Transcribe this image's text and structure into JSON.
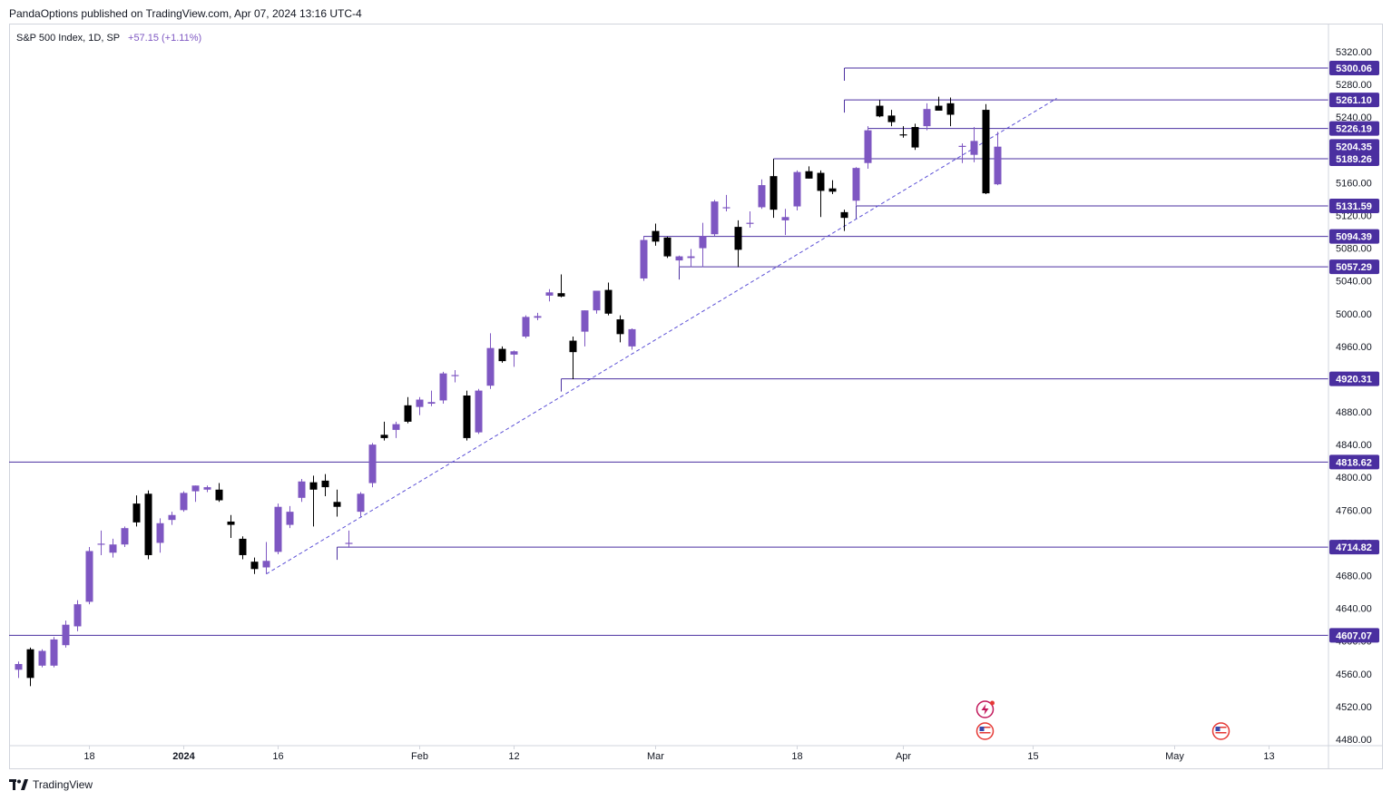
{
  "header": {
    "published_by": "PandaOptions published on TradingView.com, Apr 07, 2024 13:16 UTC-4"
  },
  "legend": {
    "symbol": "S&P 500 Index, 1D, SP",
    "change": "+57.15 (+1.11%)"
  },
  "footer": {
    "brand": "TradingView",
    "brand_icon": "tradingview-logo-icon"
  },
  "colors": {
    "up": "#7e57c2",
    "down": "#000000",
    "level_line": "#4a2fa0",
    "trendline": "#5b4fd6",
    "level_label_bg": "#4a2fa0",
    "grid_border": "#d1d4dc"
  },
  "chart_data": {
    "type": "candlestick",
    "symbol": "S&P 500 Index",
    "interval": "1D",
    "ylim": [
      4480,
      5330
    ],
    "y_ticks": [
      4480,
      4520,
      4560,
      4600,
      4640,
      4680,
      4720,
      4760,
      4800,
      4840,
      4880,
      4920,
      4960,
      5000,
      5040,
      5080,
      5120,
      5160,
      5200,
      5240,
      5280,
      5320
    ],
    "x_ticks": [
      {
        "label": "18",
        "index": 6
      },
      {
        "label": "2024",
        "index": 14
      },
      {
        "label": "16",
        "index": 22
      },
      {
        "label": "Feb",
        "index": 34
      },
      {
        "label": "12",
        "index": 42
      },
      {
        "label": "Mar",
        "index": 54
      },
      {
        "label": "18",
        "index": 66
      },
      {
        "label": "Apr",
        "index": 75
      },
      {
        "label": "15",
        "index": 86
      },
      {
        "label": "May",
        "index": 98
      },
      {
        "label": "13",
        "index": 106
      }
    ],
    "candles": [
      {
        "o": 4565,
        "h": 4575,
        "l": 4555,
        "c": 4572
      },
      {
        "o": 4590,
        "h": 4592,
        "l": 4545,
        "c": 4555
      },
      {
        "o": 4570,
        "h": 4590,
        "l": 4568,
        "c": 4588
      },
      {
        "o": 4570,
        "h": 4605,
        "l": 4568,
        "c": 4602
      },
      {
        "o": 4595,
        "h": 4625,
        "l": 4592,
        "c": 4620
      },
      {
        "o": 4618,
        "h": 4650,
        "l": 4612,
        "c": 4645
      },
      {
        "o": 4648,
        "h": 4715,
        "l": 4645,
        "c": 4710
      },
      {
        "o": 4718,
        "h": 4735,
        "l": 4705,
        "c": 4719
      },
      {
        "o": 4708,
        "h": 4725,
        "l": 4702,
        "c": 4718
      },
      {
        "o": 4718,
        "h": 4740,
        "l": 4715,
        "c": 4738
      },
      {
        "o": 4768,
        "h": 4778,
        "l": 4740,
        "c": 4745
      },
      {
        "o": 4780,
        "h": 4784,
        "l": 4700,
        "c": 4705
      },
      {
        "o": 4720,
        "h": 4750,
        "l": 4708,
        "c": 4744
      },
      {
        "o": 4748,
        "h": 4758,
        "l": 4742,
        "c": 4754
      },
      {
        "o": 4760,
        "h": 4783,
        "l": 4758,
        "c": 4781
      },
      {
        "o": 4783,
        "h": 4790,
        "l": 4770,
        "c": 4790
      },
      {
        "o": 4785,
        "h": 4790,
        "l": 4782,
        "c": 4788
      },
      {
        "o": 4785,
        "h": 4793,
        "l": 4770,
        "c": 4772
      },
      {
        "o": 4746,
        "h": 4754,
        "l": 4726,
        "c": 4742
      },
      {
        "o": 4725,
        "h": 4728,
        "l": 4700,
        "c": 4705
      },
      {
        "o": 4697,
        "h": 4702,
        "l": 4682,
        "c": 4688
      },
      {
        "o": 4690,
        "h": 4721,
        "l": 4682,
        "c": 4698
      },
      {
        "o": 4709,
        "h": 4768,
        "l": 4706,
        "c": 4764
      },
      {
        "o": 4742,
        "h": 4765,
        "l": 4738,
        "c": 4758
      },
      {
        "o": 4775,
        "h": 4798,
        "l": 4770,
        "c": 4795
      },
      {
        "o": 4794,
        "h": 4802,
        "l": 4740,
        "c": 4785
      },
      {
        "o": 4796,
        "h": 4804,
        "l": 4777,
        "c": 4788
      },
      {
        "o": 4770,
        "h": 4785,
        "l": 4752,
        "c": 4764
      },
      {
        "o": 4720,
        "h": 4735,
        "l": 4714,
        "c": 4720
      },
      {
        "o": 4758,
        "h": 4782,
        "l": 4752,
        "c": 4780
      },
      {
        "o": 4793,
        "h": 4842,
        "l": 4788,
        "c": 4840
      },
      {
        "o": 4852,
        "h": 4868,
        "l": 4845,
        "c": 4848
      },
      {
        "o": 4858,
        "h": 4868,
        "l": 4848,
        "c": 4865
      },
      {
        "o": 4888,
        "h": 4898,
        "l": 4866,
        "c": 4868
      },
      {
        "o": 4886,
        "h": 4898,
        "l": 4876,
        "c": 4895
      },
      {
        "o": 4890,
        "h": 4906,
        "l": 4887,
        "c": 4892
      },
      {
        "o": 4894,
        "h": 4929,
        "l": 4890,
        "c": 4927
      },
      {
        "o": 4925,
        "h": 4931,
        "l": 4916,
        "c": 4925
      },
      {
        "o": 4900,
        "h": 4906,
        "l": 4845,
        "c": 4848
      },
      {
        "o": 4855,
        "h": 4908,
        "l": 4853,
        "c": 4906
      },
      {
        "o": 4912,
        "h": 4976,
        "l": 4908,
        "c": 4958
      },
      {
        "o": 4957,
        "h": 4960,
        "l": 4940,
        "c": 4942
      },
      {
        "o": 4950,
        "h": 4955,
        "l": 4935,
        "c": 4954
      },
      {
        "o": 4972,
        "h": 4998,
        "l": 4970,
        "c": 4996
      },
      {
        "o": 4995,
        "h": 5001,
        "l": 4992,
        "c": 4997
      },
      {
        "o": 5022,
        "h": 5030,
        "l": 5015,
        "c": 5026
      },
      {
        "o": 5025,
        "h": 5048,
        "l": 5020,
        "c": 5021
      },
      {
        "o": 4967,
        "h": 4972,
        "l": 4920,
        "c": 4953
      },
      {
        "o": 4978,
        "h": 5004,
        "l": 4960,
        "c": 5004
      },
      {
        "o": 5004,
        "h": 5028,
        "l": 5000,
        "c": 5028
      },
      {
        "o": 5029,
        "h": 5038,
        "l": 4998,
        "c": 5000
      },
      {
        "o": 4993,
        "h": 4998,
        "l": 4965,
        "c": 4975
      },
      {
        "o": 4960,
        "h": 4982,
        "l": 4956,
        "c": 4981
      },
      {
        "o": 5043,
        "h": 5095,
        "l": 5040,
        "c": 5090
      },
      {
        "o": 5101,
        "h": 5110,
        "l": 5083,
        "c": 5088
      },
      {
        "o": 5093,
        "h": 5094,
        "l": 5068,
        "c": 5070
      },
      {
        "o": 5065,
        "h": 5071,
        "l": 5056,
        "c": 5070
      },
      {
        "o": 5068,
        "h": 5079,
        "l": 5057,
        "c": 5070
      },
      {
        "o": 5080,
        "h": 5111,
        "l": 5057,
        "c": 5095
      },
      {
        "o": 5097,
        "h": 5139,
        "l": 5095,
        "c": 5137
      },
      {
        "o": 5130,
        "h": 5145,
        "l": 5125,
        "c": 5130
      },
      {
        "o": 5106,
        "h": 5114,
        "l": 5057,
        "c": 5078
      },
      {
        "o": 5111,
        "h": 5125,
        "l": 5105,
        "c": 5111
      },
      {
        "o": 5130,
        "h": 5164,
        "l": 5128,
        "c": 5157
      },
      {
        "o": 5168,
        "h": 5189,
        "l": 5117,
        "c": 5127
      },
      {
        "o": 5114,
        "h": 5128,
        "l": 5096,
        "c": 5118
      },
      {
        "o": 5131,
        "h": 5175,
        "l": 5126,
        "c": 5173
      },
      {
        "o": 5174,
        "h": 5180,
        "l": 5165,
        "c": 5165
      },
      {
        "o": 5172,
        "h": 5175,
        "l": 5118,
        "c": 5150
      },
      {
        "o": 5153,
        "h": 5163,
        "l": 5146,
        "c": 5149
      },
      {
        "o": 5124,
        "h": 5127,
        "l": 5101,
        "c": 5117
      },
      {
        "o": 5138,
        "h": 5179,
        "l": 5132,
        "c": 5178
      },
      {
        "o": 5184,
        "h": 5229,
        "l": 5177,
        "c": 5224
      },
      {
        "o": 5254,
        "h": 5261,
        "l": 5240,
        "c": 5241
      },
      {
        "o": 5242,
        "h": 5249,
        "l": 5229,
        "c": 5234
      },
      {
        "o": 5219,
        "h": 5229,
        "l": 5215,
        "c": 5218
      },
      {
        "o": 5228,
        "h": 5232,
        "l": 5200,
        "c": 5203
      },
      {
        "o": 5229,
        "h": 5257,
        "l": 5224,
        "c": 5250
      },
      {
        "o": 5254,
        "h": 5265,
        "l": 5248,
        "c": 5248
      },
      {
        "o": 5257,
        "h": 5264,
        "l": 5229,
        "c": 5243
      },
      {
        "o": 5204,
        "h": 5208,
        "l": 5184,
        "c": 5205
      },
      {
        "o": 5194,
        "h": 5228,
        "l": 5185,
        "c": 5211
      },
      {
        "o": 5249,
        "h": 5256,
        "l": 5146,
        "c": 5147
      },
      {
        "o": 5158,
        "h": 5222,
        "l": 5157,
        "c": 5204
      }
    ],
    "levels": [
      {
        "value": 5300.06,
        "label": "5300.06",
        "start_index": 70
      },
      {
        "value": 5261.1,
        "label": "5261.10",
        "start_index": 70
      },
      {
        "value": 5226.19,
        "label": "5226.19",
        "start_index": 72
      },
      {
        "value": 5204.35,
        "label": "5204.35",
        "start_index": -1,
        "label_only": true
      },
      {
        "value": 5189.26,
        "label": "5189.26",
        "start_index": 64
      },
      {
        "value": 5131.59,
        "label": "5131.59",
        "start_index": 71
      },
      {
        "value": 5094.39,
        "label": "5094.39",
        "start_index": 53
      },
      {
        "value": 5057.29,
        "label": "5057.29",
        "start_index": 56
      },
      {
        "value": 4920.31,
        "label": "4920.31",
        "start_index": 46
      },
      {
        "value": 4818.62,
        "label": "4818.62",
        "start_index": -1
      },
      {
        "value": 4714.82,
        "label": "4714.82",
        "start_index": 27
      },
      {
        "value": 4607.07,
        "label": "4607.07",
        "start_index": -1
      }
    ],
    "trendline": {
      "from": {
        "index": 21,
        "value": 4682
      },
      "to": {
        "index": 88,
        "value": 5263
      },
      "style": "dashed"
    },
    "event_icons": [
      {
        "icon": "lightning-event-icon",
        "index": 82
      },
      {
        "icon": "us-flag-event-icon",
        "index": 82
      },
      {
        "icon": "us-flag-event-icon",
        "index": 102
      }
    ]
  }
}
